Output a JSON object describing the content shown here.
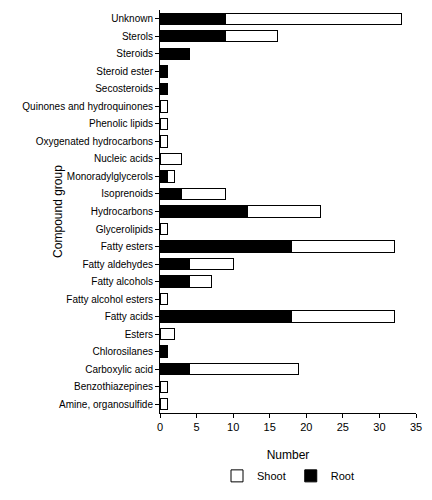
{
  "chart_data": {
    "type": "bar",
    "orientation": "horizontal",
    "stacked": true,
    "x_label": "Number",
    "y_label": "Compound group",
    "categories": [
      "Unknown",
      "Sterols",
      "Steroids",
      "Steroid ester",
      "Secosteroids",
      "Quinones and hydroquinones",
      "Phenolic lipids",
      "Oxygenated hydrocarbons",
      "Nucleic acids",
      "Monoradylglycerols",
      "Isoprenoids",
      "Hydrocarbons",
      "Glycerolipids",
      "Fatty esters",
      "Fatty aldehydes",
      "Fatty alcohols",
      "Fatty alcohol esters",
      "Fatty acids",
      "Esters",
      "Chlorosilanes",
      "Carboxylic acid",
      "Benzothiazepines",
      "Amine, organosulfide"
    ],
    "series": [
      {
        "name": "Root",
        "color": "#000000",
        "values": [
          9,
          9,
          4,
          1,
          1,
          0,
          0,
          0,
          0,
          1,
          3,
          12,
          0,
          18,
          4,
          4,
          0,
          18,
          0,
          1,
          4,
          0,
          0
        ]
      },
      {
        "name": "Shoot",
        "color": "#ffffff",
        "values": [
          24,
          7,
          0,
          0,
          0,
          1,
          1,
          1,
          3,
          1,
          6,
          10,
          1,
          14,
          6,
          3,
          1,
          14,
          2,
          0,
          15,
          1,
          1
        ]
      }
    ],
    "xlim": [
      0,
      35
    ],
    "xticks": [
      0,
      5,
      10,
      15,
      20,
      25,
      30,
      35
    ],
    "grid": false,
    "legend": "bottom"
  }
}
